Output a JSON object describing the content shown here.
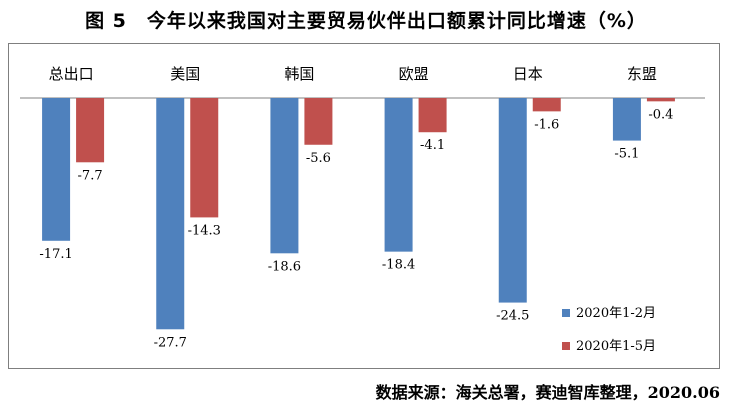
{
  "title": "图 5　今年以来我国对主要贸易伙伴出口额累计同比增速（%）",
  "source": "数据来源：海关总署，赛迪智库整理，2020.06",
  "colors": {
    "series1": "#4f81bd",
    "series2": "#c0504d",
    "axis": "#808080"
  },
  "chart_data": {
    "type": "bar",
    "categories": [
      "总出口",
      "美国",
      "韩国",
      "欧盟",
      "日本",
      "东盟"
    ],
    "series": [
      {
        "name": "2020年1-2月",
        "values": [
          -17.1,
          -27.7,
          -18.6,
          -18.4,
          -24.5,
          -5.1
        ]
      },
      {
        "name": "2020年1-5月",
        "values": [
          -7.7,
          -14.3,
          -5.6,
          -4.1,
          -1.6,
          -0.4
        ]
      }
    ],
    "ylim": [
      -30,
      0
    ],
    "legend_position": "bottom-right",
    "grid": false
  }
}
